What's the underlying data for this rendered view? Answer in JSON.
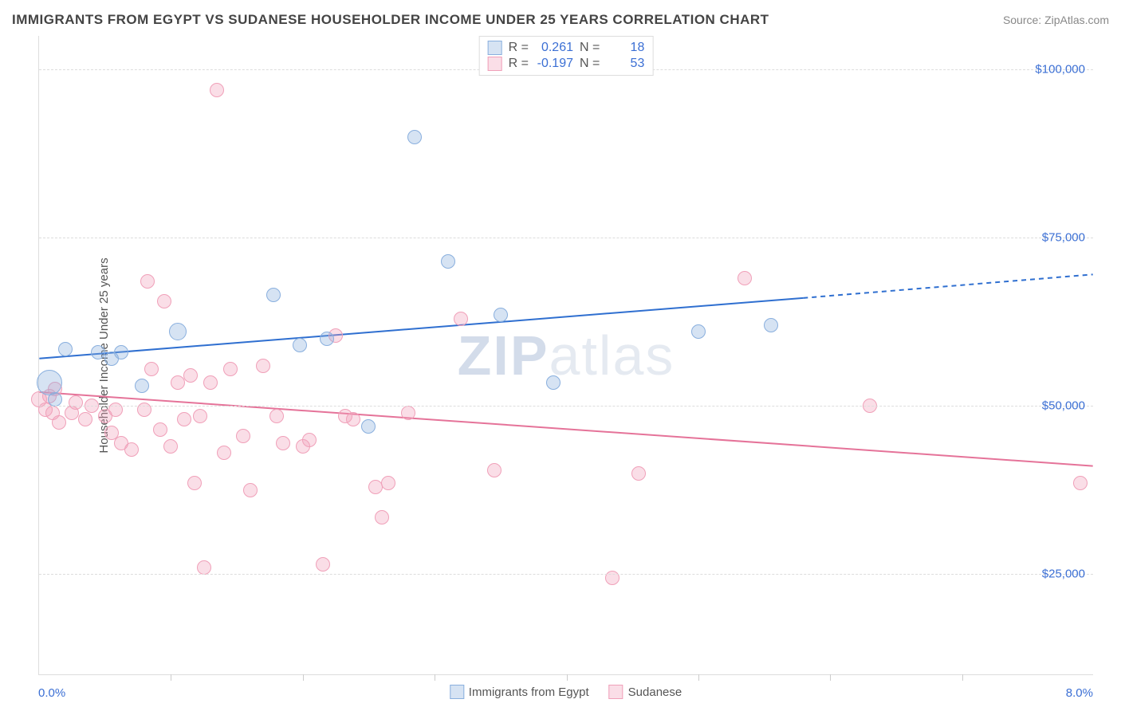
{
  "title": "IMMIGRANTS FROM EGYPT VS SUDANESE HOUSEHOLDER INCOME UNDER 25 YEARS CORRELATION CHART",
  "source_label": "Source: ZipAtlas.com",
  "y_axis_label": "Householder Income Under 25 years",
  "watermark": {
    "bold": "ZIP",
    "rest": "atlas"
  },
  "chart": {
    "type": "scatter",
    "xlim": [
      0,
      8
    ],
    "ylim": [
      10000,
      105000
    ],
    "x_min_label": "0.0%",
    "x_max_label": "8.0%",
    "x_ticks": [
      1.0,
      2.0,
      3.0,
      4.0,
      5.0,
      6.0,
      7.0
    ],
    "y_grid": [
      25000,
      50000,
      75000,
      100000
    ],
    "y_tick_labels": [
      "$25,000",
      "$50,000",
      "$75,000",
      "$100,000"
    ],
    "background_color": "#ffffff",
    "grid_color": "#dddddd",
    "axis_color": "#dddddd",
    "label_color": "#555555",
    "tick_label_color": "#3b6fd4",
    "title_color": "#444444",
    "title_fontsize": 17,
    "label_fontsize": 15
  },
  "series": [
    {
      "name": "Immigrants from Egypt",
      "fill": "rgba(137,175,222,0.35)",
      "stroke": "#89afde",
      "line_color": "#2f6fd0",
      "r_label": "R  =",
      "r_value": "0.261",
      "n_label": "N  =",
      "n_value": "18",
      "marker_radius": 9,
      "line_width": 2,
      "trend": {
        "x1": 0.0,
        "y1": 57000,
        "x2": 5.8,
        "y2": 66000,
        "x2_ext": 8.0,
        "y2_ext": 69500
      },
      "points": [
        {
          "x": 0.08,
          "y": 53500,
          "r": 16
        },
        {
          "x": 0.2,
          "y": 58500,
          "r": 9
        },
        {
          "x": 0.45,
          "y": 58000,
          "r": 9
        },
        {
          "x": 0.62,
          "y": 58000,
          "r": 9
        },
        {
          "x": 0.78,
          "y": 53000,
          "r": 9
        },
        {
          "x": 1.05,
          "y": 61000,
          "r": 11
        },
        {
          "x": 1.78,
          "y": 66500,
          "r": 9
        },
        {
          "x": 1.98,
          "y": 59000,
          "r": 9
        },
        {
          "x": 2.18,
          "y": 60000,
          "r": 9
        },
        {
          "x": 2.5,
          "y": 47000,
          "r": 9
        },
        {
          "x": 2.85,
          "y": 90000,
          "r": 9
        },
        {
          "x": 3.1,
          "y": 71500,
          "r": 9
        },
        {
          "x": 3.5,
          "y": 63500,
          "r": 9
        },
        {
          "x": 3.9,
          "y": 53500,
          "r": 9
        },
        {
          "x": 5.0,
          "y": 61000,
          "r": 9
        },
        {
          "x": 5.55,
          "y": 62000,
          "r": 9
        },
        {
          "x": 0.12,
          "y": 51000,
          "r": 9
        },
        {
          "x": 0.55,
          "y": 57000,
          "r": 9
        }
      ]
    },
    {
      "name": "Sudanese",
      "fill": "rgba(240,160,185,0.35)",
      "stroke": "#f0a0b9",
      "line_color": "#e57399",
      "r_label": "R  =",
      "r_value": "-0.197",
      "n_label": "N  =",
      "n_value": "53",
      "marker_radius": 9,
      "line_width": 2,
      "trend": {
        "x1": 0.0,
        "y1": 52000,
        "x2": 8.0,
        "y2": 41000,
        "x2_ext": 8.0,
        "y2_ext": 41000
      },
      "points": [
        {
          "x": 0.0,
          "y": 51000,
          "r": 10
        },
        {
          "x": 0.05,
          "y": 49500,
          "r": 9
        },
        {
          "x": 0.1,
          "y": 49000,
          "r": 9
        },
        {
          "x": 0.12,
          "y": 52500,
          "r": 9
        },
        {
          "x": 0.15,
          "y": 47500,
          "r": 9
        },
        {
          "x": 0.25,
          "y": 49000,
          "r": 9
        },
        {
          "x": 0.28,
          "y": 50500,
          "r": 9
        },
        {
          "x": 0.35,
          "y": 48000,
          "r": 9
        },
        {
          "x": 0.4,
          "y": 50000,
          "r": 9
        },
        {
          "x": 0.5,
          "y": 48500,
          "r": 9
        },
        {
          "x": 0.55,
          "y": 46000,
          "r": 9
        },
        {
          "x": 0.58,
          "y": 49500,
          "r": 9
        },
        {
          "x": 0.62,
          "y": 44500,
          "r": 9
        },
        {
          "x": 0.7,
          "y": 43500,
          "r": 9
        },
        {
          "x": 0.8,
          "y": 49500,
          "r": 9
        },
        {
          "x": 0.82,
          "y": 68500,
          "r": 9
        },
        {
          "x": 0.85,
          "y": 55500,
          "r": 9
        },
        {
          "x": 0.92,
          "y": 46500,
          "r": 9
        },
        {
          "x": 0.95,
          "y": 65500,
          "r": 9
        },
        {
          "x": 1.0,
          "y": 44000,
          "r": 9
        },
        {
          "x": 1.05,
          "y": 53500,
          "r": 9
        },
        {
          "x": 1.1,
          "y": 48000,
          "r": 9
        },
        {
          "x": 1.15,
          "y": 54500,
          "r": 9
        },
        {
          "x": 1.18,
          "y": 38500,
          "r": 9
        },
        {
          "x": 1.22,
          "y": 48500,
          "r": 9
        },
        {
          "x": 1.25,
          "y": 26000,
          "r": 9
        },
        {
          "x": 1.3,
          "y": 53500,
          "r": 9
        },
        {
          "x": 1.35,
          "y": 97000,
          "r": 9
        },
        {
          "x": 1.4,
          "y": 43000,
          "r": 9
        },
        {
          "x": 1.45,
          "y": 55500,
          "r": 9
        },
        {
          "x": 1.55,
          "y": 45500,
          "r": 9
        },
        {
          "x": 1.6,
          "y": 37500,
          "r": 9
        },
        {
          "x": 1.7,
          "y": 56000,
          "r": 9
        },
        {
          "x": 1.8,
          "y": 48500,
          "r": 9
        },
        {
          "x": 1.85,
          "y": 44500,
          "r": 9
        },
        {
          "x": 2.0,
          "y": 44000,
          "r": 9
        },
        {
          "x": 2.05,
          "y": 45000,
          "r": 9
        },
        {
          "x": 2.15,
          "y": 26500,
          "r": 9
        },
        {
          "x": 2.25,
          "y": 60500,
          "r": 9
        },
        {
          "x": 2.32,
          "y": 48500,
          "r": 9
        },
        {
          "x": 2.38,
          "y": 48000,
          "r": 9
        },
        {
          "x": 2.55,
          "y": 38000,
          "r": 9
        },
        {
          "x": 2.6,
          "y": 33500,
          "r": 9
        },
        {
          "x": 2.65,
          "y": 38500,
          "r": 9
        },
        {
          "x": 2.8,
          "y": 49000,
          "r": 9
        },
        {
          "x": 3.2,
          "y": 63000,
          "r": 9
        },
        {
          "x": 3.45,
          "y": 40500,
          "r": 9
        },
        {
          "x": 4.35,
          "y": 24500,
          "r": 9
        },
        {
          "x": 4.55,
          "y": 40000,
          "r": 9
        },
        {
          "x": 5.35,
          "y": 69000,
          "r": 9
        },
        {
          "x": 6.3,
          "y": 50000,
          "r": 9
        },
        {
          "x": 7.9,
          "y": 38500,
          "r": 9
        },
        {
          "x": 0.08,
          "y": 51500,
          "r": 9
        }
      ]
    }
  ],
  "bottom_legend": [
    {
      "label": "Immigrants from Egypt",
      "fill": "rgba(137,175,222,0.35)",
      "stroke": "#89afde"
    },
    {
      "label": "Sudanese",
      "fill": "rgba(240,160,185,0.35)",
      "stroke": "#f0a0b9"
    }
  ]
}
